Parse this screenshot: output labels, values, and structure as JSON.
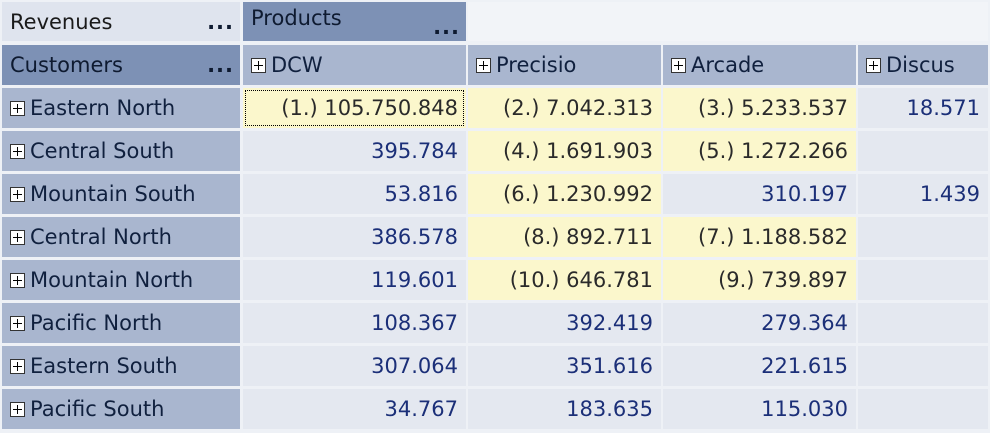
{
  "measure_label": "Revenues",
  "column_dimension": {
    "label": "Products",
    "menu": "..."
  },
  "row_dimension": {
    "label": "Customers",
    "menu": "..."
  },
  "measure_menu": "...",
  "columns": [
    "DCW",
    "Precisio",
    "Arcade",
    "Discus"
  ],
  "rows": [
    {
      "label": "Eastern North",
      "values": [
        "(1.) 105.750.848",
        "(2.) 7.042.313",
        "(3.) 5.233.537",
        "18.571"
      ],
      "highlight": [
        true,
        true,
        true,
        false
      ]
    },
    {
      "label": "Central South",
      "values": [
        "395.784",
        "(4.) 1.691.903",
        "(5.) 1.272.266",
        ""
      ],
      "highlight": [
        false,
        true,
        true,
        false
      ]
    },
    {
      "label": "Mountain South",
      "values": [
        "53.816",
        "(6.) 1.230.992",
        "310.197",
        "1.439"
      ],
      "highlight": [
        false,
        true,
        false,
        false
      ]
    },
    {
      "label": "Central North",
      "values": [
        "386.578",
        "(8.) 892.711",
        "(7.) 1.188.582",
        ""
      ],
      "highlight": [
        false,
        true,
        true,
        false
      ]
    },
    {
      "label": "Mountain North",
      "values": [
        "119.601",
        "(10.) 646.781",
        "(9.) 739.897",
        ""
      ],
      "highlight": [
        false,
        true,
        true,
        false
      ]
    },
    {
      "label": "Pacific North",
      "values": [
        "108.367",
        "392.419",
        "279.364",
        ""
      ],
      "highlight": [
        false,
        false,
        false,
        false
      ]
    },
    {
      "label": "Eastern South",
      "values": [
        "307.064",
        "351.616",
        "221.615",
        ""
      ],
      "highlight": [
        false,
        false,
        false,
        false
      ]
    },
    {
      "label": "Pacific South",
      "values": [
        "34.767",
        "183.635",
        "115.030",
        ""
      ],
      "highlight": [
        false,
        false,
        false,
        false
      ]
    }
  ],
  "colors": {
    "header_dark": "#7d91b5",
    "header_light": "#a9b6cf",
    "cell_bg": "#e4e8f0",
    "highlight_bg": "#fbf7cc",
    "value_text": "#1b2f78"
  }
}
